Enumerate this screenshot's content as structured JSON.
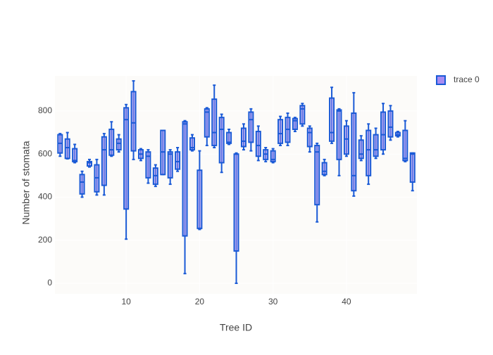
{
  "chart_data": {
    "type": "box",
    "x_label": "Tree ID",
    "y_label": "Number of stomata",
    "x": [
      1,
      2,
      3,
      4,
      5,
      6,
      7,
      8,
      9,
      10,
      11,
      12,
      13,
      14,
      15,
      16,
      17,
      18,
      19,
      20,
      21,
      22,
      23,
      24,
      25,
      26,
      27,
      28,
      29,
      30,
      31,
      32,
      33,
      34,
      35,
      36,
      37,
      38,
      39,
      40,
      41,
      42,
      43,
      44,
      45,
      46,
      47,
      48,
      49
    ],
    "series": [
      {
        "name": "trace 0",
        "color": "#1a5ad6",
        "fillcolor": "#a88cf2",
        "lowerfence": [
          590,
          578,
          560,
          400,
          540,
          410,
          410,
          590,
          610,
          205,
          575,
          570,
          465,
          450,
          505,
          460,
          520,
          45,
          615,
          250,
          640,
          630,
          515,
          645,
          0,
          620,
          615,
          570,
          565,
          560,
          640,
          640,
          705,
          730,
          610,
          285,
          500,
          650,
          500,
          590,
          405,
          570,
          460,
          580,
          600,
          665,
          680,
          565,
          430
        ],
        "q1": [
          605,
          580,
          565,
          415,
          545,
          425,
          455,
          595,
          620,
          345,
          615,
          580,
          490,
          460,
          505,
          490,
          530,
          220,
          620,
          255,
          680,
          640,
          560,
          650,
          150,
          635,
          655,
          590,
          575,
          565,
          650,
          655,
          715,
          740,
          635,
          365,
          505,
          660,
          575,
          600,
          430,
          580,
          500,
          590,
          620,
          680,
          685,
          570,
          470
        ],
        "median": [
          650,
          630,
          570,
          470,
          560,
          490,
          620,
          620,
          650,
          760,
          745,
          600,
          590,
          500,
          610,
          600,
          565,
          740,
          630,
          255,
          795,
          700,
          715,
          655,
          600,
          660,
          760,
          640,
          600,
          575,
          695,
          715,
          755,
          810,
          700,
          610,
          520,
          700,
          800,
          670,
          500,
          600,
          620,
          620,
          690,
          725,
          690,
          580,
          600
        ],
        "q3": [
          690,
          670,
          625,
          505,
          565,
          550,
          680,
          715,
          670,
          815,
          890,
          620,
          610,
          535,
          710,
          610,
          610,
          750,
          675,
          525,
          810,
          855,
          770,
          700,
          600,
          720,
          795,
          705,
          620,
          615,
          760,
          770,
          765,
          825,
          720,
          640,
          560,
          860,
          805,
          730,
          790,
          665,
          710,
          690,
          795,
          800,
          700,
          710,
          605
        ],
        "upperfence": [
          695,
          700,
          645,
          520,
          575,
          575,
          695,
          750,
          690,
          830,
          940,
          625,
          620,
          550,
          710,
          620,
          630,
          755,
          690,
          615,
          815,
          920,
          785,
          715,
          605,
          740,
          810,
          730,
          630,
          625,
          775,
          790,
          770,
          835,
          730,
          650,
          575,
          910,
          810,
          755,
          885,
          685,
          740,
          720,
          835,
          825,
          705,
          755,
          605
        ]
      }
    ],
    "xlim": [
      0.3,
      49.6
    ],
    "ylim": [
      -49,
      963
    ],
    "xticks": [
      10,
      20,
      30,
      40
    ],
    "yticks": [
      0,
      200,
      400,
      600,
      800
    ],
    "grid": true,
    "legend": "right"
  }
}
